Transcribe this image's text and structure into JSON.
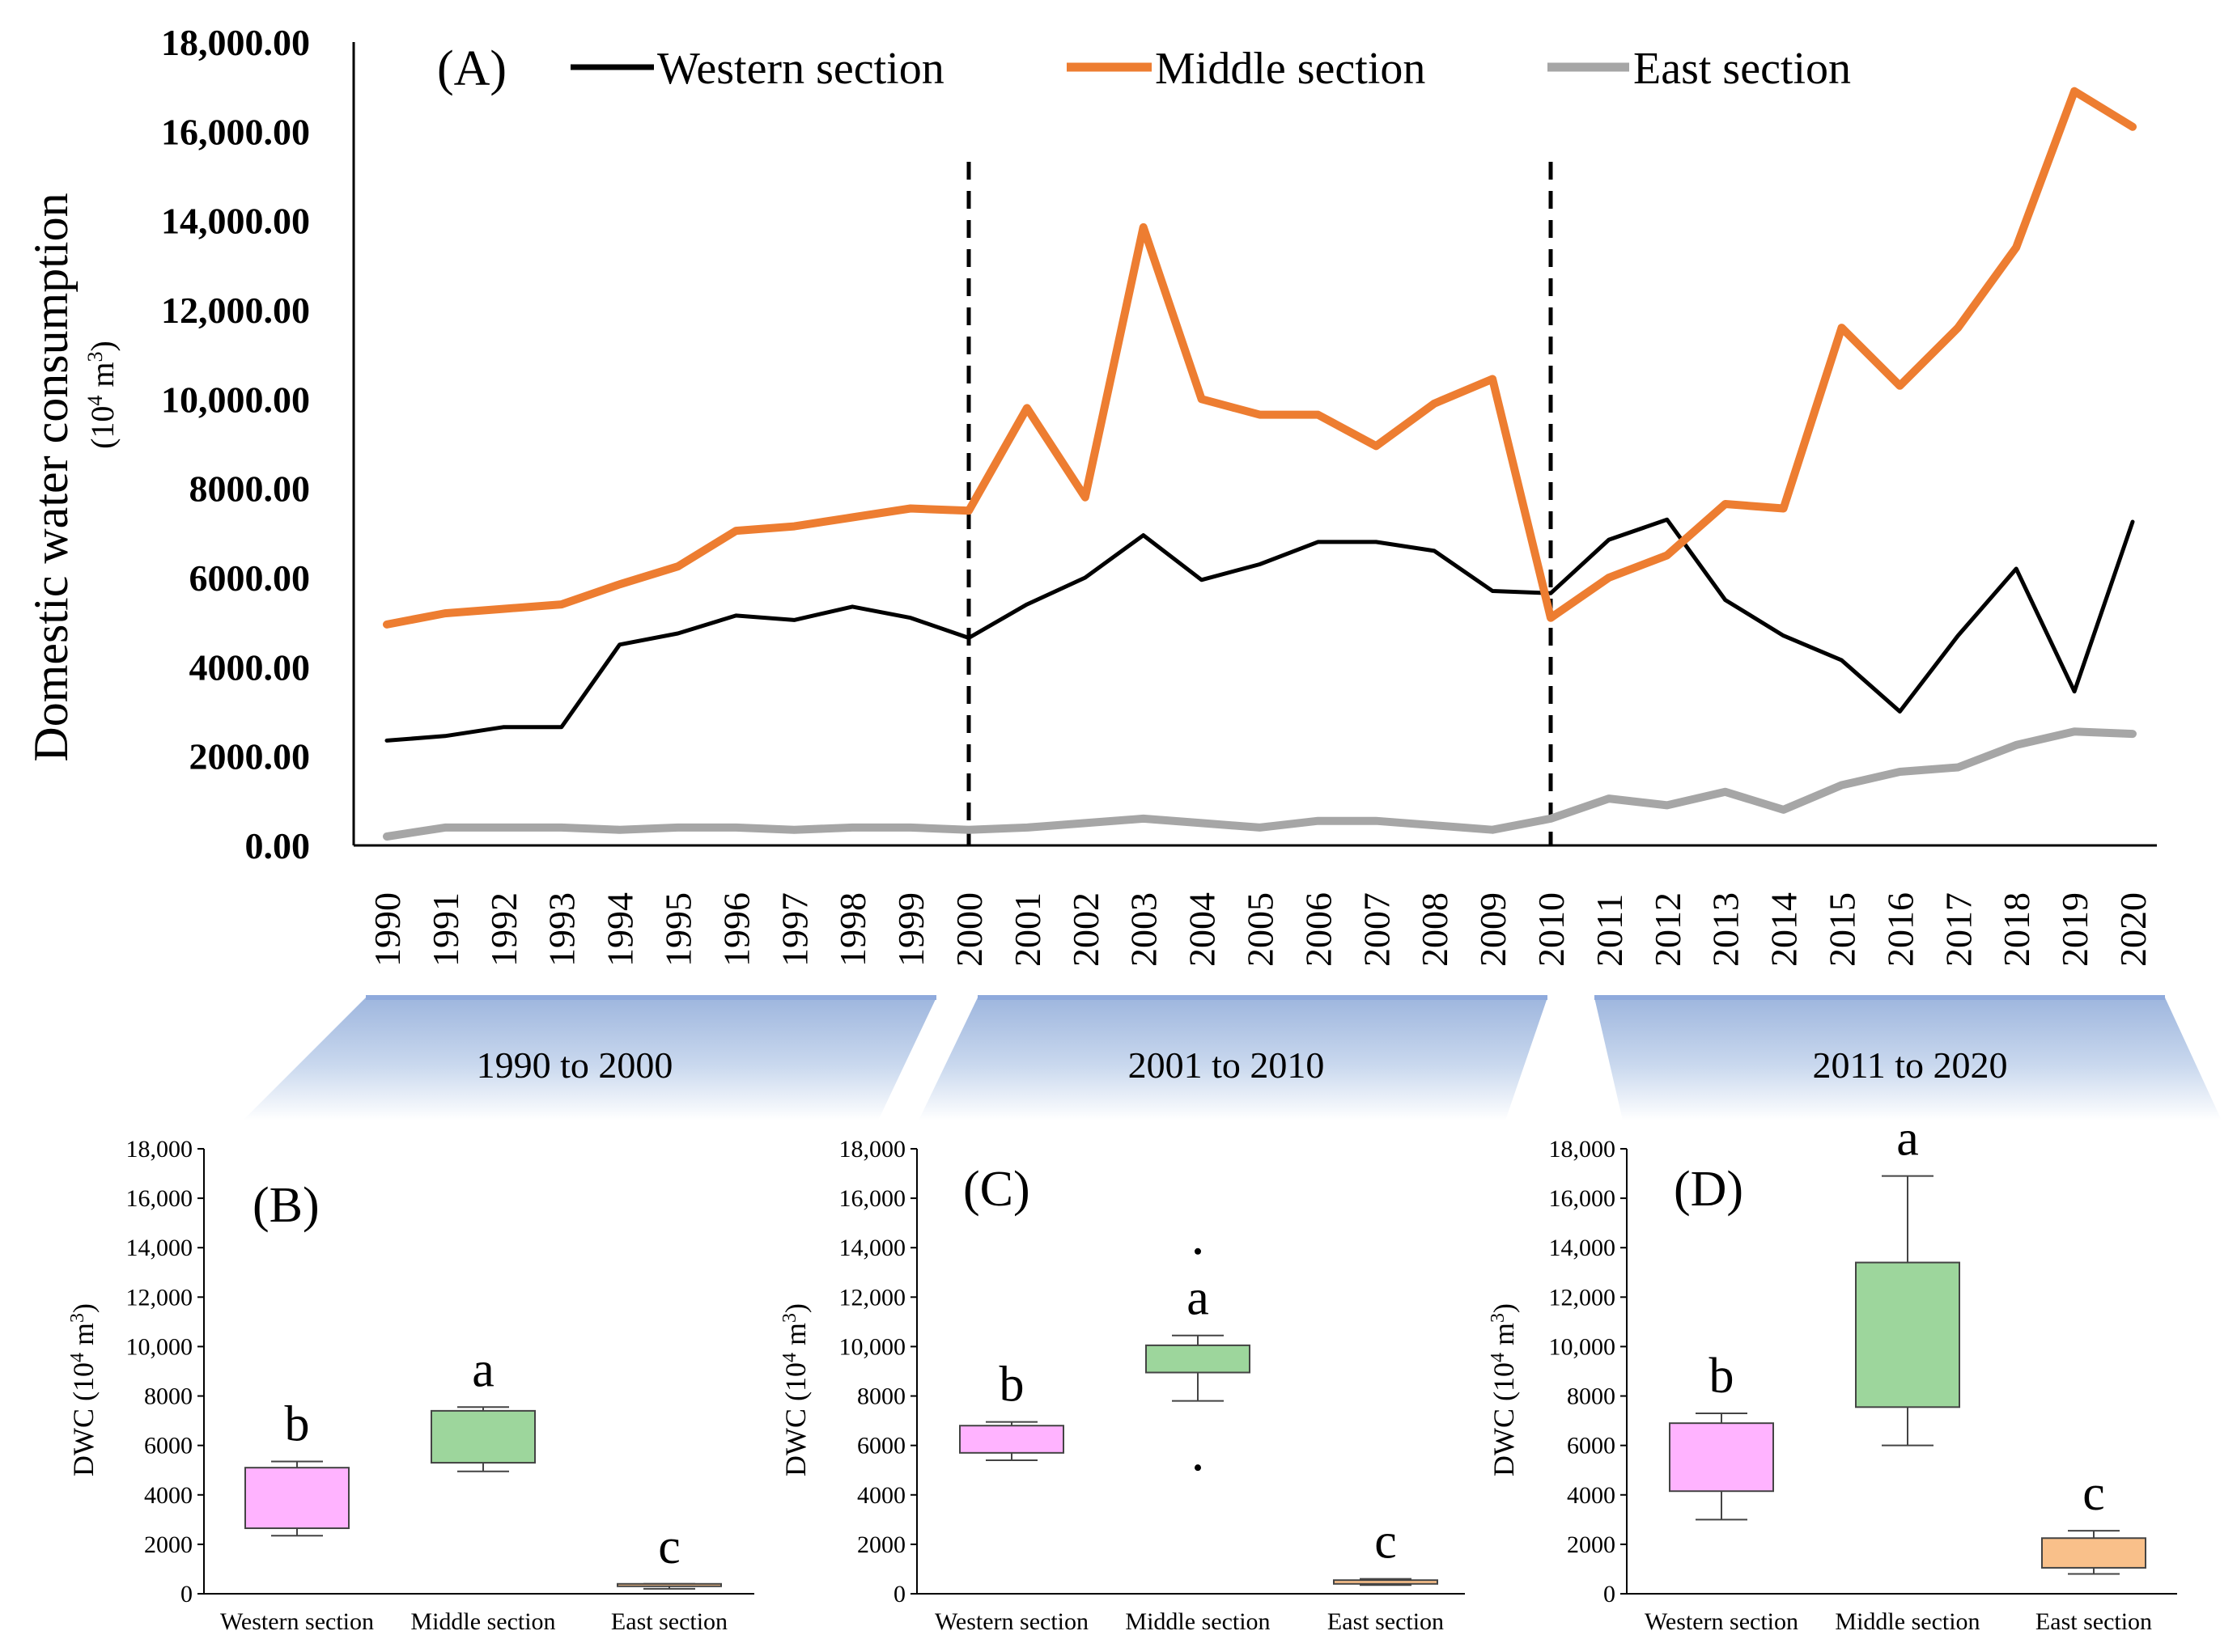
{
  "chart_data": [
    {
      "type": "line",
      "panel_label": "(A)",
      "ylabel": "Domestic water consumption",
      "yunit": "(10",
      "yunit_sup": "4",
      "yunit_rest": " m",
      "yunit_sup2": "3",
      "yunit_close": ")",
      "ylim": [
        0,
        18000
      ],
      "yticks": [
        0,
        2000,
        4000,
        6000,
        8000,
        10000,
        12000,
        14000,
        16000,
        18000
      ],
      "ytick_labels": [
        "0.00",
        "2000.00",
        "4000.00",
        "6000.00",
        "8000.00",
        "10,000.00",
        "12,000.00",
        "14,000.00",
        "16,000.00",
        "18,000.00"
      ],
      "x": [
        "1990",
        "1991",
        "1992",
        "1993",
        "1994",
        "1995",
        "1996",
        "1997",
        "1998",
        "1999",
        "2000",
        "2001",
        "2002",
        "2003",
        "2004",
        "2005",
        "2006",
        "2007",
        "2008",
        "2009",
        "2010",
        "2011",
        "2012",
        "2013",
        "2014",
        "2015",
        "2016",
        "2017",
        "2018",
        "2019",
        "2020"
      ],
      "dividers_at": [
        "2000",
        "2010"
      ],
      "series": [
        {
          "name": "Western section",
          "color": "#000000",
          "values": [
            2350,
            2450,
            2650,
            2650,
            4500,
            4750,
            5150,
            5050,
            5350,
            5100,
            4650,
            5400,
            6000,
            6950,
            5950,
            6300,
            6800,
            6800,
            6600,
            5700,
            5650,
            6850,
            7300,
            5500,
            4700,
            4150,
            3000,
            4700,
            6200,
            3450,
            7250
          ]
        },
        {
          "name": "Middle section",
          "color": "#ED7D31",
          "values": [
            4950,
            5200,
            5300,
            5400,
            5850,
            6250,
            7050,
            7150,
            7350,
            7550,
            7500,
            9800,
            7800,
            13850,
            10000,
            9650,
            9650,
            8950,
            9900,
            10450,
            5100,
            6000,
            6500,
            7650,
            7550,
            11600,
            10300,
            11600,
            13400,
            16900,
            16100
          ]
        },
        {
          "name": "East section",
          "color": "#A6A6A6",
          "values": [
            200,
            400,
            400,
            400,
            350,
            400,
            400,
            350,
            400,
            400,
            350,
            400,
            500,
            600,
            500,
            400,
            550,
            550,
            450,
            350,
            600,
            1050,
            900,
            1200,
            800,
            1350,
            1650,
            1750,
            2250,
            2550,
            2500
          ]
        }
      ],
      "periods": [
        "1990 to 2000",
        "2001 to 2010",
        "2011 to 2020"
      ]
    },
    {
      "type": "box",
      "panel_label": "(B)",
      "ylabel": "DWC (10",
      "ylabel_sup": "4",
      "ylabel_rest": " m",
      "ylabel_sup2": "3",
      "ylabel_close": ")",
      "ylim": [
        0,
        18000
      ],
      "yticks": [
        0,
        2000,
        4000,
        6000,
        8000,
        10000,
        12000,
        14000,
        16000,
        18000
      ],
      "ytick_labels": [
        "0",
        "2000",
        "4000",
        "6000",
        "8000",
        "10,000",
        "12,000",
        "14,000",
        "16,000",
        "18,000"
      ],
      "categories": [
        "Western section",
        "Middle section",
        "East section"
      ],
      "boxes": [
        {
          "min": 2350,
          "q1": 2650,
          "q3": 5100,
          "max": 5350,
          "color": "#FFB3FF",
          "letter": "b",
          "outliers": []
        },
        {
          "min": 4950,
          "q1": 5300,
          "q3": 7400,
          "max": 7550,
          "color": "#9DD69C",
          "letter": "a",
          "outliers": []
        },
        {
          "min": 200,
          "q1": 350,
          "q3": 400,
          "max": 400,
          "color": "#F9C08A",
          "letter": "c",
          "outliers": []
        }
      ]
    },
    {
      "type": "box",
      "panel_label": "(C)",
      "ylabel": "DWC (10",
      "ylabel_sup": "4",
      "ylabel_rest": " m",
      "ylabel_sup2": "3",
      "ylabel_close": ")",
      "ylim": [
        0,
        18000
      ],
      "yticks": [
        0,
        2000,
        4000,
        6000,
        8000,
        10000,
        12000,
        14000,
        16000,
        18000
      ],
      "ytick_labels": [
        "0",
        "2000",
        "4000",
        "6000",
        "8000",
        "10,000",
        "12,000",
        "14,000",
        "16,000",
        "18,000"
      ],
      "categories": [
        "Western section",
        "Middle section",
        "East section"
      ],
      "boxes": [
        {
          "min": 5400,
          "q1": 5700,
          "q3": 6800,
          "max": 6950,
          "color": "#FFB3FF",
          "letter": "b",
          "outliers": []
        },
        {
          "min": 7800,
          "q1": 8950,
          "q3": 10050,
          "max": 10450,
          "color": "#9DD69C",
          "letter": "a",
          "outliers": [
            13850,
            5100
          ]
        },
        {
          "min": 350,
          "q1": 400,
          "q3": 550,
          "max": 600,
          "color": "#F9C08A",
          "letter": "c",
          "outliers": []
        }
      ]
    },
    {
      "type": "box",
      "panel_label": "(D)",
      "ylabel": "DWC (10",
      "ylabel_sup": "4",
      "ylabel_rest": " m",
      "ylabel_sup2": "3",
      "ylabel_close": ")",
      "ylim": [
        0,
        18000
      ],
      "yticks": [
        0,
        2000,
        4000,
        6000,
        8000,
        10000,
        12000,
        14000,
        16000,
        18000
      ],
      "ytick_labels": [
        "0",
        "2000",
        "4000",
        "6000",
        "8000",
        "10,000",
        "12,000",
        "14,000",
        "16,000",
        "18,000"
      ],
      "categories": [
        "Western section",
        "Middle section",
        "East section"
      ],
      "boxes": [
        {
          "min": 3000,
          "q1": 4150,
          "q3": 6900,
          "max": 7300,
          "color": "#FFB3FF",
          "letter": "b",
          "outliers": []
        },
        {
          "min": 6000,
          "q1": 7550,
          "q3": 13400,
          "max": 16900,
          "color": "#9DD69C",
          "letter": "a",
          "outliers": []
        },
        {
          "min": 800,
          "q1": 1050,
          "q3": 2250,
          "max": 2550,
          "color": "#F9C08A",
          "letter": "c",
          "outliers": []
        }
      ]
    }
  ]
}
